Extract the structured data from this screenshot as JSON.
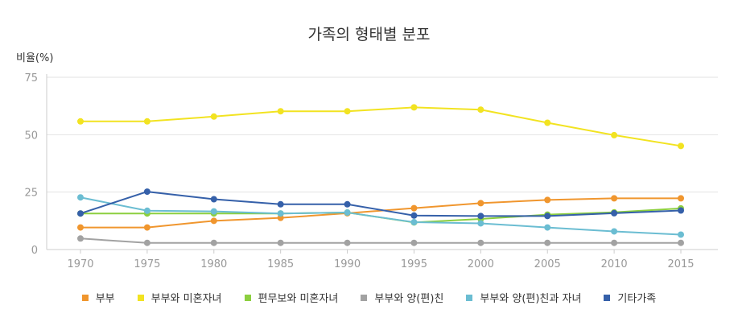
{
  "chart_data": {
    "type": "line",
    "title": "가족의 형태별 분포",
    "ylabel": "비율(%)",
    "xlabel": "",
    "ylim": [
      0,
      75
    ],
    "yticks": [
      0,
      25,
      50,
      75
    ],
    "grid": true,
    "legend_position": "bottom",
    "x": [
      "1970",
      "1975",
      "1980",
      "1985",
      "1990",
      "1995",
      "2000",
      "2005",
      "2010",
      "2015"
    ],
    "series": [
      {
        "name": "부부",
        "color": "#f0962e",
        "values": [
          9.6,
          9.6,
          12.5,
          13.8,
          15.8,
          18.0,
          20.2,
          21.6,
          22.3,
          22.3
        ]
      },
      {
        "name": "부부와 미혼자녀",
        "color": "#f2e321",
        "values": [
          55.8,
          55.8,
          57.9,
          60.2,
          60.2,
          61.9,
          60.9,
          55.2,
          49.8,
          45.1
        ]
      },
      {
        "name": "편무보와 미혼자녀",
        "color": "#8ccf3f",
        "values": [
          15.7,
          15.7,
          15.7,
          15.7,
          16.1,
          11.8,
          13.3,
          15.2,
          16.2,
          17.9
        ]
      },
      {
        "name": "부부와 양(편)친",
        "color": "#a2a2a2",
        "values": [
          4.8,
          2.9,
          2.9,
          2.9,
          2.9,
          2.9,
          2.9,
          2.9,
          2.9,
          2.9
        ]
      },
      {
        "name": "부부와 양(편)친과 자녀",
        "color": "#6bbdd2",
        "values": [
          22.7,
          16.9,
          16.6,
          15.7,
          16.1,
          11.9,
          11.4,
          9.6,
          7.9,
          6.5
        ]
      },
      {
        "name": "기타가족",
        "color": "#3560a9",
        "values": [
          15.7,
          25.2,
          21.9,
          19.7,
          19.7,
          14.8,
          14.6,
          14.6,
          15.8,
          17.0
        ]
      }
    ]
  }
}
